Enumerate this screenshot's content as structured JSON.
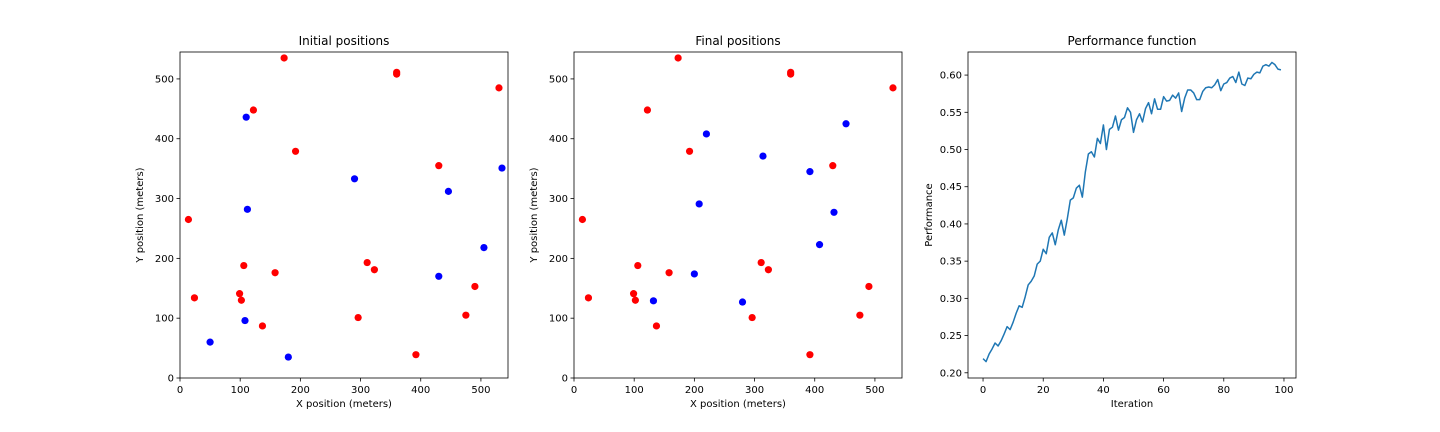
{
  "chart_data": [
    {
      "type": "scatter",
      "title": "Initial positions",
      "xlabel": "X position (meters)",
      "ylabel": "Y position (meters)",
      "xlim": [
        0,
        545
      ],
      "ylim": [
        0,
        545
      ],
      "xticks": [
        0,
        100,
        200,
        300,
        400,
        500
      ],
      "yticks": [
        0,
        100,
        200,
        300,
        400,
        500
      ],
      "series": [
        {
          "color": "#ff0000",
          "points": [
            [
              173,
              535
            ],
            [
              360,
              508
            ],
            [
              360,
              511
            ],
            [
              530,
              485
            ],
            [
              122,
              448
            ],
            [
              192,
              379
            ],
            [
              430,
              355
            ],
            [
              14,
              265
            ],
            [
              106,
              188
            ],
            [
              158,
              176
            ],
            [
              311,
              193
            ],
            [
              323,
              181
            ],
            [
              24,
              134
            ],
            [
              99,
              141
            ],
            [
              102,
              130
            ],
            [
              137,
              87
            ],
            [
              296,
              101
            ],
            [
              490,
              153
            ],
            [
              475,
              105
            ],
            [
              392,
              39
            ]
          ]
        },
        {
          "color": "#0000ff",
          "points": [
            [
              110,
              436
            ],
            [
              535,
              351
            ],
            [
              290,
              333
            ],
            [
              446,
              312
            ],
            [
              112,
              282
            ],
            [
              505,
              218
            ],
            [
              430,
              170
            ],
            [
              108,
              96
            ],
            [
              50,
              60
            ],
            [
              180,
              35
            ]
          ]
        }
      ]
    },
    {
      "type": "scatter",
      "title": "Final positions",
      "xlabel": "X position (meters)",
      "ylabel": "Y position (meters)",
      "xlim": [
        0,
        545
      ],
      "ylim": [
        0,
        545
      ],
      "xticks": [
        0,
        100,
        200,
        300,
        400,
        500
      ],
      "yticks": [
        0,
        100,
        200,
        300,
        400,
        500
      ],
      "series": [
        {
          "color": "#ff0000",
          "points": [
            [
              173,
              535
            ],
            [
              360,
              508
            ],
            [
              360,
              511
            ],
            [
              530,
              485
            ],
            [
              122,
              448
            ],
            [
              192,
              379
            ],
            [
              430,
              355
            ],
            [
              14,
              265
            ],
            [
              106,
              188
            ],
            [
              158,
              176
            ],
            [
              311,
              193
            ],
            [
              323,
              181
            ],
            [
              24,
              134
            ],
            [
              99,
              141
            ],
            [
              102,
              130
            ],
            [
              137,
              87
            ],
            [
              296,
              101
            ],
            [
              490,
              153
            ],
            [
              475,
              105
            ],
            [
              392,
              39
            ]
          ]
        },
        {
          "color": "#0000ff",
          "points": [
            [
              220,
              408
            ],
            [
              452,
              425
            ],
            [
              314,
              371
            ],
            [
              392,
              345
            ],
            [
              432,
              277
            ],
            [
              208,
              291
            ],
            [
              408,
              223
            ],
            [
              200,
              174
            ],
            [
              132,
              129
            ],
            [
              280,
              127
            ]
          ]
        }
      ]
    },
    {
      "type": "line",
      "title": "Performance function",
      "xlabel": "Iteration",
      "ylabel": "Performance",
      "xlim": [
        -5,
        104
      ],
      "ylim": [
        0.193,
        0.631
      ],
      "xticks": [
        0,
        20,
        40,
        60,
        80,
        100
      ],
      "yticks": [
        0.2,
        0.25,
        0.3,
        0.35,
        0.4,
        0.45,
        0.5,
        0.55,
        0.6
      ],
      "ytick_format": 2,
      "series": [
        {
          "color": "#1f77b4",
          "x": [
            0,
            1,
            2,
            3,
            4,
            5,
            6,
            7,
            8,
            9,
            10,
            11,
            12,
            13,
            14,
            15,
            16,
            17,
            18,
            19,
            20,
            21,
            22,
            23,
            24,
            25,
            26,
            27,
            28,
            29,
            30,
            31,
            32,
            33,
            34,
            35,
            36,
            37,
            38,
            39,
            40,
            41,
            42,
            43,
            44,
            45,
            46,
            47,
            48,
            49,
            50,
            51,
            52,
            53,
            54,
            55,
            56,
            57,
            58,
            59,
            60,
            61,
            62,
            63,
            64,
            65,
            66,
            67,
            68,
            69,
            70,
            71,
            72,
            73,
            74,
            75,
            76,
            77,
            78,
            79,
            80,
            81,
            82,
            83,
            84,
            85,
            86,
            87,
            88,
            89,
            90,
            91,
            92,
            93,
            94,
            95,
            96,
            97,
            98,
            99
          ],
          "y": [
            0.219,
            0.215,
            0.225,
            0.232,
            0.24,
            0.236,
            0.243,
            0.252,
            0.262,
            0.258,
            0.268,
            0.28,
            0.29,
            0.288,
            0.302,
            0.318,
            0.323,
            0.33,
            0.346,
            0.35,
            0.366,
            0.36,
            0.382,
            0.388,
            0.372,
            0.392,
            0.405,
            0.385,
            0.407,
            0.432,
            0.435,
            0.448,
            0.452,
            0.436,
            0.47,
            0.494,
            0.497,
            0.49,
            0.515,
            0.508,
            0.533,
            0.5,
            0.527,
            0.53,
            0.545,
            0.526,
            0.54,
            0.543,
            0.556,
            0.55,
            0.523,
            0.54,
            0.548,
            0.537,
            0.555,
            0.563,
            0.548,
            0.568,
            0.554,
            0.554,
            0.571,
            0.565,
            0.566,
            0.573,
            0.569,
            0.576,
            0.551,
            0.569,
            0.58,
            0.58,
            0.576,
            0.567,
            0.567,
            0.578,
            0.583,
            0.584,
            0.583,
            0.587,
            0.594,
            0.579,
            0.588,
            0.59,
            0.596,
            0.598,
            0.59,
            0.604,
            0.588,
            0.586,
            0.596,
            0.595,
            0.601,
            0.604,
            0.603,
            0.612,
            0.614,
            0.612,
            0.617,
            0.614,
            0.608,
            0.607
          ]
        }
      ]
    }
  ]
}
